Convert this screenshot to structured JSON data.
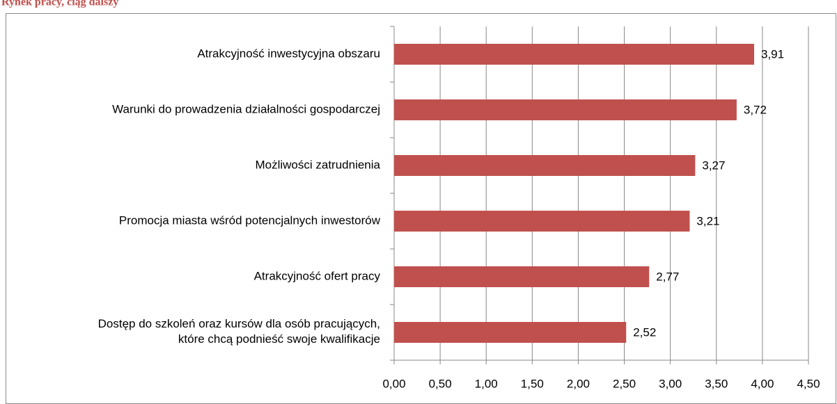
{
  "chart_data": {
    "type": "hbar",
    "title": "Rynek pracy, ciąg dalszy",
    "categories": [
      "Atrakcyjność inwestycyjna obszaru",
      "Warunki do prowadzenia działalności gospodarczej",
      "Możliwości zatrudnienia",
      "Promocja miasta wśród potencjalnych inwestorów",
      "Atrakcyjność ofert pracy",
      "Dostęp do szkoleń oraz kursów dla osób pracujących,\nktóre chcą podnieść swoje kwalifikacje"
    ],
    "values": [
      3.91,
      3.72,
      3.27,
      3.21,
      2.77,
      2.52
    ],
    "value_labels": [
      "3,91",
      "3,72",
      "3,27",
      "3,21",
      "2,77",
      "2,52"
    ],
    "color": "#c0504d",
    "xlim": [
      0,
      4.5
    ],
    "xticks": [
      {
        "value": 0,
        "label": "0,00"
      },
      {
        "value": 0.5,
        "label": "0,50"
      },
      {
        "value": 1,
        "label": "1,00"
      },
      {
        "value": 1.5,
        "label": "1,50"
      },
      {
        "value": 2,
        "label": "2,00"
      },
      {
        "value": 2.5,
        "label": "2,50"
      },
      {
        "value": 3,
        "label": "3,00"
      },
      {
        "value": 3.5,
        "label": "3,50"
      },
      {
        "value": 4,
        "label": "4,00"
      },
      {
        "value": 4.5,
        "label": "4,50"
      }
    ],
    "grid": true
  }
}
